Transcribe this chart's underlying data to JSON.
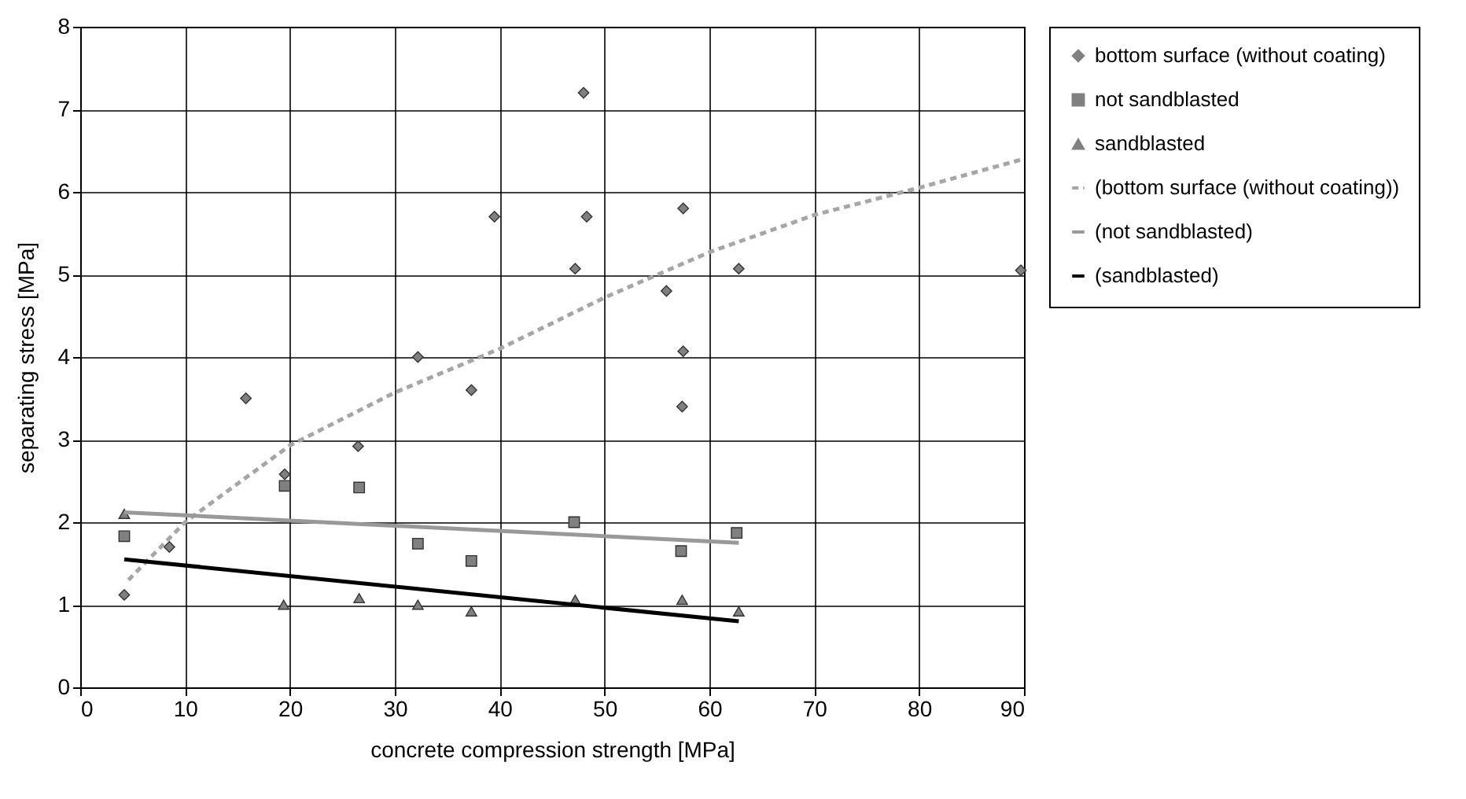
{
  "chart_data": {
    "type": "scatter",
    "xlabel": "concrete compression strength [MPa]",
    "ylabel": "separating stress [MPa]",
    "xlim": [
      0,
      90
    ],
    "ylim": [
      0,
      8
    ],
    "xticks": [
      0,
      10,
      20,
      30,
      40,
      50,
      60,
      70,
      80,
      90
    ],
    "yticks": [
      0,
      1,
      2,
      3,
      4,
      5,
      6,
      7,
      8
    ],
    "grid": true,
    "legend": "right",
    "series": [
      {
        "name": "bottom surface (without coating)",
        "marker": "diamond",
        "color": "#808080",
        "x": [
          4.2,
          8.5,
          15.8,
          19.5,
          26.5,
          32.2,
          37.3,
          39.5,
          47.2,
          48,
          48.3,
          55.9,
          57.5,
          57.5,
          57.4,
          62.8,
          89.7
        ],
        "values": [
          1.12,
          1.7,
          3.5,
          2.58,
          2.92,
          4.0,
          3.6,
          5.7,
          5.07,
          7.2,
          5.7,
          4.8,
          5.8,
          4.07,
          3.4,
          5.07,
          5.05
        ]
      },
      {
        "name": "not sandblasted",
        "marker": "square",
        "color": "#808080",
        "x": [
          4.2,
          19.5,
          26.6,
          32.2,
          37.3,
          47.1,
          57.3,
          62.6
        ],
        "values": [
          1.83,
          2.44,
          2.42,
          1.74,
          1.53,
          2.0,
          1.65,
          1.87
        ]
      },
      {
        "name": "sandblasted",
        "marker": "triangle",
        "color": "#808080",
        "x": [
          4.2,
          19.4,
          26.6,
          32.2,
          37.3,
          47.2,
          57.4,
          62.8
        ],
        "values": [
          2.1,
          1.0,
          1.08,
          1.0,
          0.92,
          1.06,
          1.06,
          0.92
        ]
      },
      {
        "name": "(bottom surface (without coating))",
        "type": "line",
        "line_style": "dashed",
        "color": "#a6a6a6",
        "x": [
          4.6,
          10,
          20,
          30,
          40,
          50,
          60,
          70,
          80,
          90
        ],
        "values": [
          1.3,
          2.0,
          2.93,
          3.57,
          4.1,
          4.72,
          5.27,
          5.72,
          6.05,
          6.4
        ]
      },
      {
        "name": "(not sandblasted)",
        "type": "line",
        "line_style": "solid",
        "color": "#999999",
        "x": [
          4.2,
          62.8
        ],
        "values": [
          2.12,
          1.75
        ]
      },
      {
        "name": "(sandblasted)",
        "type": "line",
        "line_style": "solid",
        "color": "#000000",
        "x": [
          4.2,
          62.8
        ],
        "values": [
          1.55,
          0.8
        ]
      }
    ]
  }
}
